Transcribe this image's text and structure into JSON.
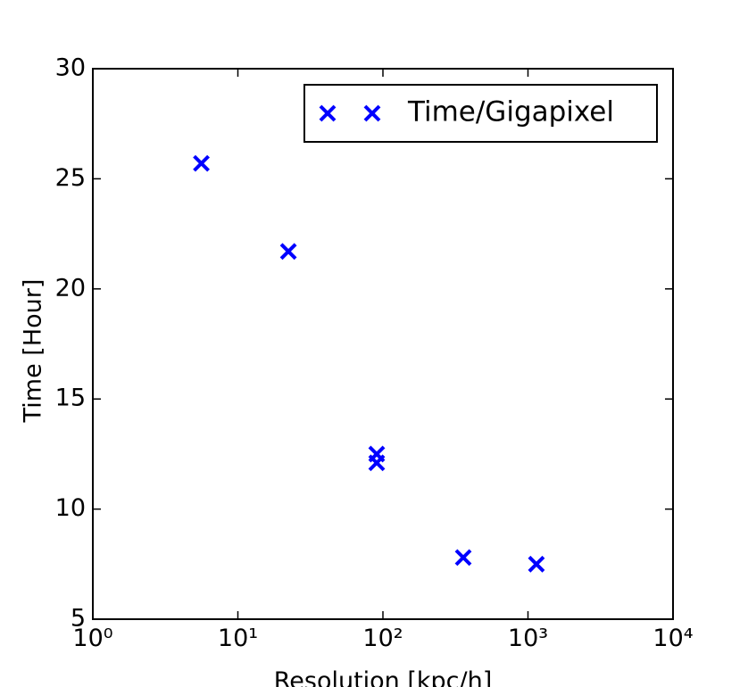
{
  "chart_data": {
    "type": "scatter",
    "x_label": "Resolution [kpc/h]",
    "y_label": "Time [Hour]",
    "x_scale": "log",
    "xlim": [
      1,
      10000
    ],
    "xticks": [
      {
        "value": 1,
        "label": "10⁰"
      },
      {
        "value": 10,
        "label": "10¹"
      },
      {
        "value": 100,
        "label": "10²"
      },
      {
        "value": 1000,
        "label": "10³"
      },
      {
        "value": 10000,
        "label": "10⁴"
      }
    ],
    "ylim": [
      5,
      30
    ],
    "yticks": [
      5,
      10,
      15,
      20,
      25,
      30
    ],
    "legend_position": "upper right",
    "series": [
      {
        "name": "Time/Gigapixel",
        "color": "#0000ff",
        "marker": "x",
        "x": [
          5.6,
          22.3,
          90.6,
          90.6,
          358,
          1143
        ],
        "values": [
          25.7,
          21.7,
          12.5,
          12.1,
          7.8,
          7.5
        ]
      }
    ]
  }
}
